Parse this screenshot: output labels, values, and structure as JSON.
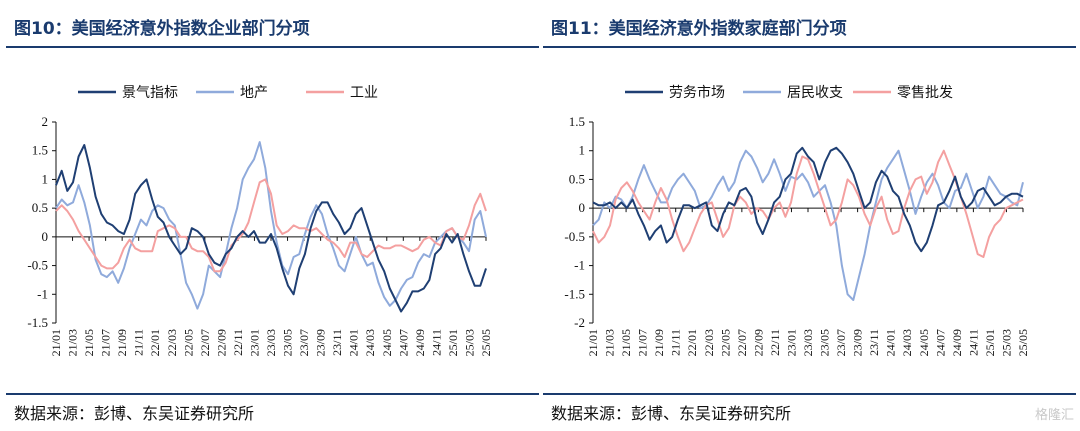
{
  "watermark": "格隆汇",
  "chart_data": [
    {
      "type": "line",
      "figure_label": "图10：美国经济意外指数企业部门分项",
      "source": "数据来源：彭博、东吴证券研究所",
      "ylim": [
        -1.5,
        2
      ],
      "yticks": [
        "2",
        "1.5",
        "1",
        "0.5",
        "0",
        "-0.5",
        "-1",
        "-1.5"
      ],
      "xticks": [
        "21/01",
        "21/03",
        "21/05",
        "21/07",
        "21/09",
        "21/11",
        "22/01",
        "22/03",
        "22/05",
        "22/07",
        "22/09",
        "22/11",
        "23/01",
        "23/03",
        "23/05",
        "23/07",
        "23/09",
        "23/11",
        "24/01",
        "24/03",
        "24/05",
        "24/07",
        "24/09",
        "24/11",
        "25/01",
        "25/03",
        "25/05"
      ],
      "legend_position": "top",
      "series": [
        {
          "name": "景气指标",
          "color": "#1f3f73",
          "values": [
            0.9,
            1.15,
            0.8,
            0.95,
            1.4,
            1.6,
            1.2,
            0.7,
            0.4,
            0.25,
            0.2,
            0.1,
            0.05,
            0.3,
            0.75,
            0.9,
            1.0,
            0.65,
            0.35,
            0.25,
            0.0,
            -0.15,
            -0.3,
            -0.2,
            0.15,
            0.1,
            0.0,
            -0.3,
            -0.45,
            -0.5,
            -0.3,
            -0.2,
            0.0,
            0.1,
            0.0,
            0.1,
            -0.1,
            -0.1,
            0.05,
            -0.2,
            -0.55,
            -0.85,
            -1.0,
            -0.55,
            -0.3,
            0.15,
            0.45,
            0.6,
            0.6,
            0.4,
            0.25,
            0.05,
            0.15,
            0.4,
            0.5,
            0.2,
            -0.1,
            -0.4,
            -0.6,
            -0.9,
            -1.1,
            -1.3,
            -1.15,
            -0.95,
            -0.95,
            -0.9,
            -0.75,
            -0.3,
            -0.2,
            0.05,
            -0.1,
            0.05,
            -0.3,
            -0.6,
            -0.85,
            -0.85,
            -0.55
          ]
        },
        {
          "name": "地产",
          "color": "#8faadb",
          "values": [
            0.5,
            0.65,
            0.55,
            0.6,
            0.9,
            0.6,
            0.2,
            -0.4,
            -0.65,
            -0.7,
            -0.6,
            -0.8,
            -0.55,
            -0.2,
            0.05,
            0.3,
            0.2,
            0.45,
            0.55,
            0.5,
            0.3,
            0.2,
            -0.3,
            -0.8,
            -1.0,
            -1.25,
            -1.0,
            -0.5,
            -0.6,
            -0.7,
            -0.3,
            0.15,
            0.5,
            1.0,
            1.2,
            1.35,
            1.65,
            1.2,
            0.45,
            -0.1,
            -0.5,
            -0.65,
            -0.35,
            -0.3,
            0.05,
            0.35,
            0.55,
            0.4,
            0.05,
            -0.2,
            -0.5,
            -0.6,
            -0.3,
            0.0,
            -0.3,
            -0.5,
            -0.45,
            -0.8,
            -1.05,
            -1.2,
            -1.1,
            -0.9,
            -0.75,
            -0.7,
            -0.45,
            -0.3,
            -0.35,
            -0.1,
            0.0,
            0.1,
            0.15,
            0.0,
            -0.1,
            -0.25,
            0.3,
            0.45,
            0.0
          ]
        },
        {
          "name": "工业",
          "color": "#f4a0a0",
          "values": [
            0.45,
            0.55,
            0.45,
            0.3,
            0.1,
            -0.05,
            -0.2,
            -0.35,
            -0.5,
            -0.55,
            -0.55,
            -0.45,
            -0.2,
            -0.05,
            -0.2,
            -0.25,
            -0.25,
            -0.25,
            0.1,
            0.15,
            0.2,
            0.15,
            0.0,
            0.0,
            -0.2,
            -0.25,
            -0.25,
            -0.35,
            -0.6,
            -0.6,
            -0.45,
            -0.15,
            -0.05,
            0.05,
            0.25,
            0.6,
            0.95,
            1.0,
            0.75,
            0.2,
            0.05,
            0.1,
            0.2,
            0.15,
            0.15,
            0.1,
            0.15,
            0.05,
            -0.05,
            -0.1,
            -0.2,
            -0.35,
            -0.1,
            -0.1,
            -0.3,
            -0.35,
            -0.25,
            -0.15,
            -0.2,
            -0.2,
            -0.15,
            -0.15,
            -0.2,
            -0.25,
            -0.2,
            -0.05,
            0.0,
            -0.1,
            -0.15,
            0.1,
            0.15,
            0.0,
            -0.05,
            0.2,
            0.55,
            0.75,
            0.45
          ]
        }
      ]
    },
    {
      "type": "line",
      "figure_label": "图11：美国经济意外指数家庭部门分项",
      "source": "数据来源：彭博、东吴证券研究所",
      "ylim": [
        -2,
        1.5
      ],
      "yticks": [
        "1.5",
        "1",
        "0.5",
        "0",
        "-0.5",
        "-1",
        "-1.5",
        "-2"
      ],
      "xticks": [
        "21/01",
        "21/03",
        "21/05",
        "21/07",
        "21/09",
        "21/11",
        "22/01",
        "22/03",
        "22/05",
        "22/07",
        "22/09",
        "22/11",
        "23/01",
        "23/03",
        "23/05",
        "23/07",
        "23/09",
        "23/11",
        "24/01",
        "24/03",
        "24/05",
        "24/07",
        "24/09",
        "24/11",
        "25/01",
        "25/03",
        "25/05"
      ],
      "legend_position": "top",
      "series": [
        {
          "name": "劳务市场",
          "color": "#1f3f73",
          "values": [
            0.1,
            0.05,
            0.05,
            0.1,
            0.0,
            0.1,
            0.0,
            0.15,
            -0.1,
            -0.3,
            -0.55,
            -0.4,
            -0.3,
            -0.6,
            -0.5,
            -0.2,
            0.05,
            0.05,
            0.0,
            0.05,
            0.1,
            -0.3,
            -0.4,
            -0.1,
            0.1,
            0.05,
            0.3,
            0.35,
            0.2,
            -0.25,
            -0.45,
            -0.2,
            0.1,
            0.2,
            0.5,
            0.6,
            0.95,
            1.05,
            0.9,
            0.8,
            0.5,
            0.8,
            1.0,
            1.05,
            0.95,
            0.8,
            0.6,
            0.3,
            0.0,
            0.1,
            0.45,
            0.65,
            0.55,
            0.3,
            0.2,
            -0.1,
            -0.3,
            -0.6,
            -0.75,
            -0.6,
            -0.3,
            0.05,
            0.1,
            0.3,
            0.55,
            0.2,
            0.0,
            0.1,
            0.3,
            0.35,
            0.2,
            0.05,
            0.1,
            0.2,
            0.25,
            0.25,
            0.2
          ]
        },
        {
          "name": "居民收支",
          "color": "#8faadb",
          "values": [
            -0.3,
            -0.2,
            0.1,
            0.0,
            0.2,
            0.15,
            0.0,
            0.2,
            0.5,
            0.75,
            0.5,
            0.3,
            0.1,
            0.1,
            0.35,
            0.5,
            0.6,
            0.45,
            0.3,
            0.0,
            0.05,
            0.2,
            0.4,
            0.55,
            0.3,
            0.45,
            0.8,
            1.0,
            0.9,
            0.7,
            0.45,
            0.6,
            0.85,
            0.6,
            0.3,
            0.55,
            0.5,
            0.6,
            0.45,
            0.2,
            0.3,
            0.4,
            0.1,
            -0.3,
            -1.0,
            -1.5,
            -1.6,
            -1.2,
            -0.8,
            -0.3,
            0.1,
            0.5,
            0.7,
            0.85,
            1.0,
            0.65,
            0.3,
            -0.1,
            0.2,
            0.45,
            0.6,
            0.4,
            0.1,
            0.0,
            0.3,
            0.35,
            0.6,
            0.3,
            0.0,
            0.2,
            0.55,
            0.4,
            0.25,
            0.2,
            0.1,
            0.05,
            0.45
          ]
        },
        {
          "name": "零售批发",
          "color": "#f4a0a0",
          "values": [
            -0.4,
            -0.6,
            -0.5,
            -0.3,
            0.15,
            0.35,
            0.45,
            0.3,
            0.1,
            -0.05,
            -0.2,
            0.1,
            0.35,
            0.15,
            -0.2,
            -0.5,
            -0.75,
            -0.6,
            -0.35,
            -0.1,
            0.05,
            0.1,
            -0.2,
            -0.5,
            -0.35,
            0.05,
            0.2,
            0.1,
            -0.1,
            0.0,
            -0.05,
            -0.2,
            0.0,
            0.1,
            -0.15,
            0.1,
            0.6,
            0.9,
            0.85,
            0.6,
            0.3,
            0.0,
            -0.3,
            -0.2,
            0.1,
            0.5,
            0.4,
            0.2,
            -0.1,
            -0.3,
            0.0,
            0.2,
            -0.2,
            -0.45,
            -0.4,
            0.0,
            0.3,
            0.5,
            0.55,
            0.25,
            0.45,
            0.8,
            1.0,
            0.75,
            0.5,
            0.2,
            -0.1,
            -0.45,
            -0.8,
            -0.85,
            -0.5,
            -0.3,
            -0.2,
            0.0,
            0.05,
            0.1,
            0.15
          ]
        }
      ]
    }
  ]
}
